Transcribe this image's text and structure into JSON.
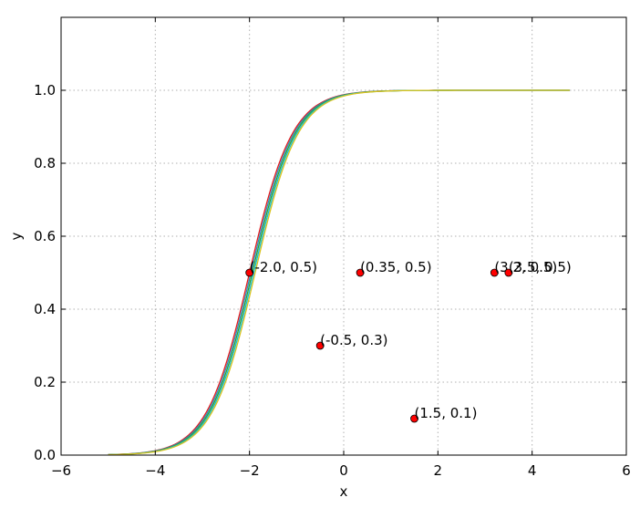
{
  "chart_data": {
    "type": "line",
    "xlabel": "x",
    "ylabel": "y",
    "xlim": [
      -6,
      6
    ],
    "ylim": [
      0,
      1.2
    ],
    "xticks": [
      -6,
      -4,
      -2,
      0,
      2,
      4,
      6
    ],
    "yticks": [
      0.0,
      0.2,
      0.4,
      0.6,
      0.8,
      1.0
    ],
    "xtick_labels": [
      "−6",
      "−4",
      "−2",
      "0",
      "2",
      "4",
      "6"
    ],
    "ytick_labels": [
      "0.0",
      "0.2",
      "0.4",
      "0.6",
      "0.8",
      "1.0"
    ],
    "grid": true,
    "curves": {
      "function": "y = 1 / (1 + exp(-2.2 * (x - c)))",
      "x_range": [
        -5,
        4.8
      ],
      "centers": [
        -2.0,
        -1.97,
        -1.94,
        -1.91,
        -1.88
      ],
      "colors": [
        "#e31a1c",
        "#2b8cbe",
        "#33a02c",
        "#17becf",
        "#d9c21b"
      ]
    },
    "points": [
      {
        "x": -2.0,
        "y": 0.5,
        "label": "(-2.0, 0.5)"
      },
      {
        "x": 0.35,
        "y": 0.5,
        "label": "(0.35, 0.5)"
      },
      {
        "x": 3.2,
        "y": 0.5,
        "label": "(3.2, 0.5)"
      },
      {
        "x": 3.5,
        "y": 0.5,
        "label": "(3.5, 0.5)"
      },
      {
        "x": -0.5,
        "y": 0.3,
        "label": "(-0.5, 0.3)"
      },
      {
        "x": 1.5,
        "y": 0.1,
        "label": "(1.5, 0.1)"
      }
    ],
    "point_color": "#ff0000"
  }
}
